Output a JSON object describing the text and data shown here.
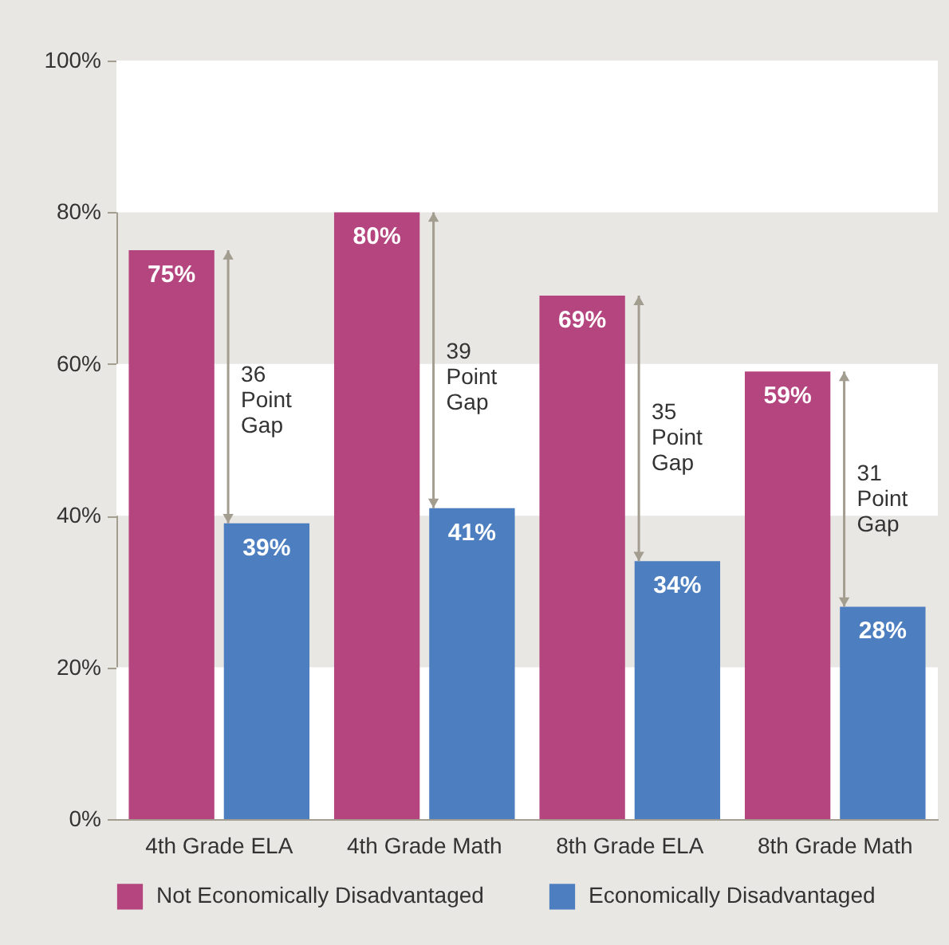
{
  "chart_data": {
    "type": "bar",
    "categories": [
      "4th Grade ELA",
      "4th Grade Math",
      "8th Grade ELA",
      "8th Grade Math"
    ],
    "series": [
      {
        "name": "Not Economically Disadvantaged",
        "color": "#b5457e",
        "values": [
          75,
          80,
          69,
          59
        ],
        "value_labels": [
          "75%",
          "80%",
          "69%",
          "59%"
        ]
      },
      {
        "name": "Economically Disadvantaged",
        "color": "#4d7fc0",
        "values": [
          39,
          41,
          34,
          28
        ],
        "value_labels": [
          "39%",
          "41%",
          "34%",
          "28%"
        ]
      }
    ],
    "ylim": [
      0,
      100
    ],
    "yticks": [
      {
        "value": 0,
        "label": "0%"
      },
      {
        "value": 20,
        "label": "20%"
      },
      {
        "value": 40,
        "label": "40%"
      },
      {
        "value": 60,
        "label": "60%"
      },
      {
        "value": 80,
        "label": "80%"
      },
      {
        "value": 100,
        "label": "100%"
      }
    ],
    "bands": [
      {
        "axis": "y",
        "from": 0,
        "to": 20,
        "color": "#ffffff"
      },
      {
        "axis": "y",
        "from": 40,
        "to": 60,
        "color": "#ffffff"
      },
      {
        "axis": "y",
        "from": 80,
        "to": 100,
        "color": "#ffffff"
      }
    ],
    "annotations": [
      {
        "text": "36 Point Gap",
        "x": "4th Grade ELA",
        "y": 60
      },
      {
        "text": "39 Point Gap",
        "x": "4th Grade Math",
        "y": 63
      },
      {
        "text": "35 Point Gap",
        "x": "8th Grade ELA",
        "y": 55
      },
      {
        "text": "31 Point Gap",
        "x": "8th Grade Math",
        "y": 47
      }
    ],
    "legend": "bottom"
  }
}
